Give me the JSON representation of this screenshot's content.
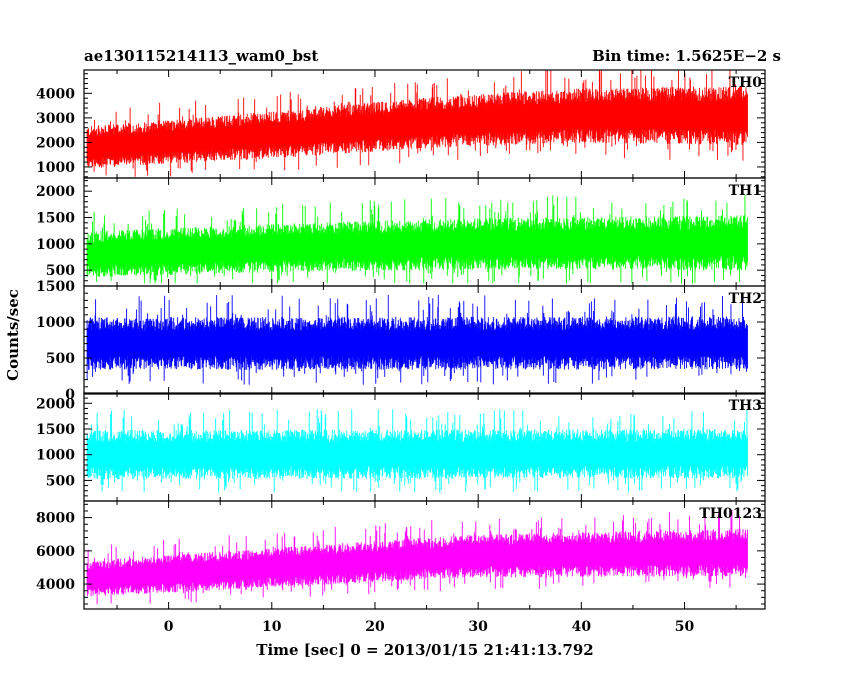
{
  "header": {
    "left": "ae130115214113_wam0_bst",
    "right": "Bin time: 1.5625E−2 s"
  },
  "chart_data": {
    "type": "line",
    "xlabel": "Time [sec] 0 = 2013/01/15 21:41:13.792",
    "ylabel": "Counts/sec",
    "xlim": [
      -8.2,
      57.8
    ],
    "x_ticks": [
      {
        "value": 0,
        "label": "0"
      },
      {
        "value": 10,
        "label": "10"
      },
      {
        "value": 20,
        "label": "20"
      },
      {
        "value": 30,
        "label": "30"
      },
      {
        "value": 40,
        "label": "40"
      },
      {
        "value": 50,
        "label": "50"
      }
    ],
    "data_range": [
      -7.9,
      56.1
    ],
    "bin_time": 0.015625,
    "panels": [
      {
        "name": "TH0",
        "color": "#ff0000",
        "ylim": [
          550,
          4950
        ],
        "yticks": [
          1000,
          2000,
          3000,
          4000
        ],
        "trend": [
          {
            "x": -7.9,
            "y": 1800
          },
          {
            "x": 10,
            "y": 2300
          },
          {
            "x": 25,
            "y": 2800
          },
          {
            "x": 40,
            "y": 3100
          },
          {
            "x": 56.1,
            "y": 3100
          }
        ],
        "spread": [
          {
            "x": -7.9,
            "y": 750
          },
          {
            "x": 56.1,
            "y": 1050
          }
        ],
        "peak_max": 4950,
        "floor_min": 600
      },
      {
        "name": "TH1",
        "color": "#00ff00",
        "ylim": [
          200,
          2250
        ],
        "yticks": [
          500,
          1000,
          1500,
          2000
        ],
        "trend": [
          {
            "x": -7.9,
            "y": 800
          },
          {
            "x": 10,
            "y": 920
          },
          {
            "x": 30,
            "y": 1000
          },
          {
            "x": 56.1,
            "y": 1020
          }
        ],
        "spread": [
          {
            "x": -7.9,
            "y": 380
          },
          {
            "x": 56.1,
            "y": 460
          }
        ],
        "peak_max": 2200,
        "floor_min": 250
      },
      {
        "name": "TH2",
        "color": "#0000ff",
        "ylim": [
          0,
          1500
        ],
        "yticks": [
          0,
          500,
          1000,
          1500
        ],
        "trend": [
          {
            "x": -7.9,
            "y": 700
          },
          {
            "x": 56.1,
            "y": 710
          }
        ],
        "spread": [
          {
            "x": -7.9,
            "y": 320
          },
          {
            "x": 56.1,
            "y": 320
          }
        ],
        "peak_max": 1500,
        "floor_min": 30
      },
      {
        "name": "TH3",
        "color": "#00ffff",
        "ylim": [
          100,
          2200
        ],
        "yticks": [
          500,
          1000,
          1500,
          2000
        ],
        "trend": [
          {
            "x": -7.9,
            "y": 1000
          },
          {
            "x": 56.1,
            "y": 1020
          }
        ],
        "spread": [
          {
            "x": -7.9,
            "y": 420
          },
          {
            "x": 56.1,
            "y": 420
          }
        ],
        "peak_max": 2150,
        "floor_min": 150
      },
      {
        "name": "TH0123",
        "color": "#ff00ff",
        "ylim": [
          2500,
          9000
        ],
        "yticks": [
          4000,
          6000,
          8000
        ],
        "trend": [
          {
            "x": -7.9,
            "y": 4300
          },
          {
            "x": 10,
            "y": 5000
          },
          {
            "x": 30,
            "y": 5700
          },
          {
            "x": 56.1,
            "y": 5900
          }
        ],
        "spread": [
          {
            "x": -7.9,
            "y": 950
          },
          {
            "x": 56.1,
            "y": 1250
          }
        ],
        "peak_max": 8950,
        "floor_min": 2600
      }
    ]
  }
}
